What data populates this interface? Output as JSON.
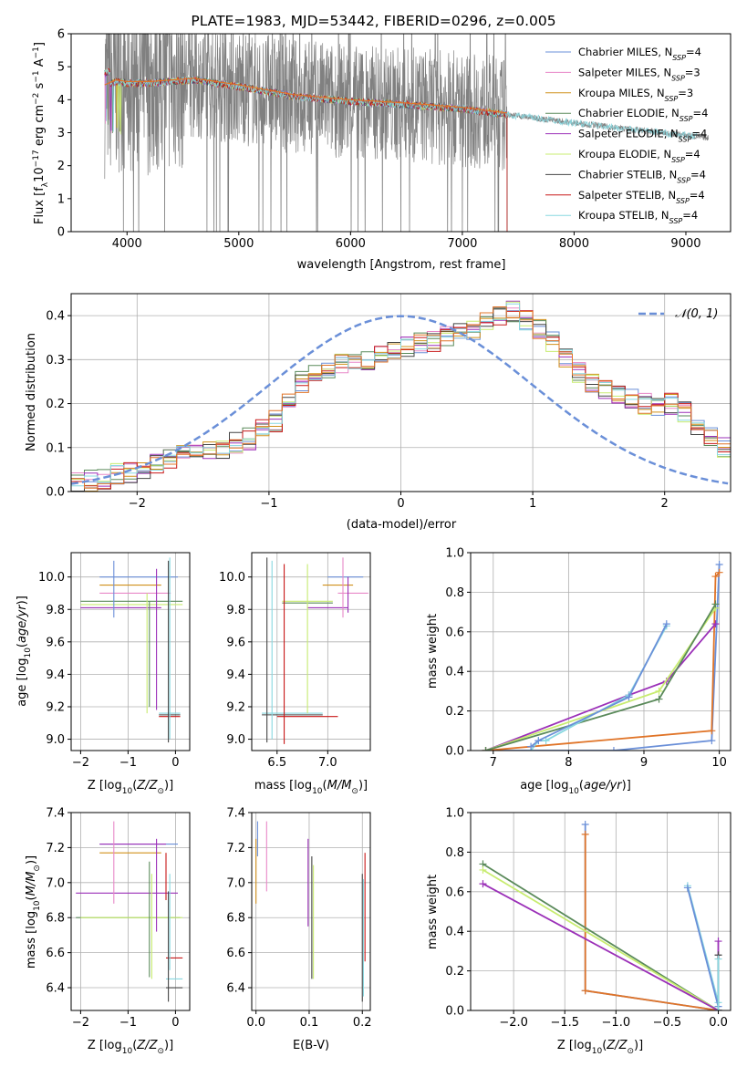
{
  "title": "PLATE=1983, MJD=53442, FIBERID=0296, z=0.005",
  "colors": {
    "Chabrier MILES": "#6a8fd8",
    "Salpeter MILES": "#e888c8",
    "Kroupa MILES": "#d0901a",
    "Chabrier ELODIE": "#5a8a5a",
    "Salpeter ELODIE": "#9b30b8",
    "Kroupa ELODIE": "#c8ec70",
    "Chabrier STELIB": "#444444",
    "Salpeter STELIB": "#c81818",
    "Kroupa STELIB": "#88d8e0",
    "data": "#808080",
    "orange": "#e07428",
    "normal": "#6a8fd8"
  },
  "legend": [
    {
      "model": "Chabrier MILES",
      "n": "=4"
    },
    {
      "model": "Salpeter MILES",
      "n": "=3"
    },
    {
      "model": "Kroupa MILES",
      "n": "=3"
    },
    {
      "model": "Chabrier ELODIE",
      "n": "=4"
    },
    {
      "model": "Salpeter ELODIE",
      "n": "=4"
    },
    {
      "model": "Kroupa ELODIE",
      "n": "=4"
    },
    {
      "model": "Chabrier STELIB",
      "n": "=4"
    },
    {
      "model": "Salpeter STELIB",
      "n": "=4"
    },
    {
      "model": "Kroupa STELIB",
      "n": "=4"
    }
  ],
  "labels": {
    "spec_x": "wavelength [Angstrom, rest frame]",
    "spec_y_prefix": "Flux [f",
    "spec_y_suffix": " erg cm",
    "hist_x": "(data-model)/error",
    "hist_y": "Normed distribution",
    "hist_legend": "𝒩(0, 1)",
    "age_y": "age  [log",
    "z_x": "Z [log",
    "mass_x": "mass [log",
    "mw_y": "mass weight",
    "age_x": "age  [log",
    "mass_y": "mass [log",
    "ebv_x": "E(B-V)"
  },
  "chart_data": [
    {
      "type": "line",
      "name": "spectrum",
      "xlim": [
        3500,
        9400
      ],
      "ylim": [
        0,
        6
      ],
      "xticks": [
        4000,
        5000,
        6000,
        7000,
        8000,
        9000
      ],
      "yticks": [
        0,
        1,
        2,
        3,
        4,
        5,
        6
      ],
      "data_range": [
        3800,
        9200
      ],
      "model_range": [
        3800,
        7400
      ],
      "continuum": [
        [
          3800,
          4.4
        ],
        [
          3900,
          4.55
        ],
        [
          4000,
          4.5
        ],
        [
          4200,
          4.5
        ],
        [
          4400,
          4.55
        ],
        [
          4600,
          4.6
        ],
        [
          5000,
          4.4
        ],
        [
          5500,
          4.1
        ],
        [
          6000,
          3.95
        ],
        [
          6500,
          3.85
        ],
        [
          7000,
          3.72
        ],
        [
          7400,
          3.55
        ],
        [
          8000,
          3.3
        ],
        [
          8500,
          3.1
        ],
        [
          9200,
          2.85
        ]
      ]
    },
    {
      "type": "line",
      "name": "residual histogram",
      "xlim": [
        -2.5,
        2.5
      ],
      "ylim": [
        0,
        0.45
      ],
      "xticks": [
        -2,
        -1,
        0,
        1,
        2
      ],
      "yticks": [
        0.0,
        0.1,
        0.2,
        0.3,
        0.4
      ],
      "bin_edges_start": -2.5,
      "bin_width": 0.1,
      "base_counts": [
        0.02,
        0.025,
        0.03,
        0.04,
        0.045,
        0.05,
        0.06,
        0.07,
        0.08,
        0.09,
        0.1,
        0.1,
        0.11,
        0.12,
        0.14,
        0.16,
        0.2,
        0.25,
        0.27,
        0.28,
        0.29,
        0.3,
        0.3,
        0.31,
        0.32,
        0.33,
        0.34,
        0.34,
        0.35,
        0.36,
        0.37,
        0.39,
        0.4,
        0.41,
        0.39,
        0.37,
        0.34,
        0.3,
        0.27,
        0.25,
        0.23,
        0.22,
        0.21,
        0.2,
        0.19,
        0.2,
        0.18,
        0.15,
        0.12,
        0.1,
        0.09,
        0.08,
        0.07,
        0.06,
        0.05,
        0.04,
        0.035,
        0.03,
        0.025,
        0.02
      ]
    },
    {
      "type": "scatter",
      "name": "age vs Z",
      "xlim": [
        -2.2,
        0.3
      ],
      "ylim": [
        8.93,
        10.15
      ],
      "xticks": [
        -2,
        -1,
        0
      ],
      "yticks": [
        9.0,
        9.2,
        9.4,
        9.6,
        9.8,
        10.0
      ],
      "hbars": [
        [
          "Chabrier MILES",
          10.0,
          -1.6,
          0.05
        ],
        [
          "Kroupa MILES",
          9.95,
          -1.6,
          -0.3
        ],
        [
          "Salpeter MILES",
          9.9,
          -1.6,
          -0.1
        ],
        [
          "Chabrier ELODIE",
          9.85,
          -2.0,
          0.15
        ],
        [
          "Kroupa ELODIE",
          9.83,
          -2.0,
          0.15
        ],
        [
          "Salpeter ELODIE",
          9.81,
          -2.0,
          -0.3
        ],
        [
          "Chabrier STELIB",
          9.15,
          -0.35,
          0.1
        ],
        [
          "Kroupa STELIB",
          9.16,
          -0.35,
          0.1
        ],
        [
          "Salpeter STELIB",
          9.14,
          -0.35,
          0.1
        ]
      ],
      "vbars": [
        [
          "Chabrier MILES",
          -1.3,
          9.75,
          10.1
        ],
        [
          "Salpeter ELODIE",
          -0.4,
          9.18,
          10.05
        ],
        [
          "Kroupa ELODIE",
          -0.6,
          9.16,
          9.9
        ],
        [
          "Chabrier ELODIE",
          -0.55,
          9.2,
          9.85
        ],
        [
          "Kroupa STELIB",
          -0.12,
          9.0,
          10.12
        ],
        [
          "Chabrier STELIB",
          -0.15,
          8.98,
          10.1
        ]
      ]
    },
    {
      "type": "scatter",
      "name": "age vs mass",
      "xlim": [
        6.25,
        7.42
      ],
      "ylim": [
        8.93,
        10.15
      ],
      "xticks": [
        6.5,
        7.0
      ],
      "yticks": [
        9.0,
        9.2,
        9.4,
        9.6,
        9.8,
        10.0
      ],
      "hbars": [
        [
          "Chabrier MILES",
          10.0,
          7.0,
          7.35
        ],
        [
          "Kroupa MILES",
          9.95,
          6.95,
          7.25
        ],
        [
          "Salpeter MILES",
          9.9,
          7.1,
          7.4
        ],
        [
          "Kroupa ELODIE",
          9.85,
          6.55,
          7.05
        ],
        [
          "Chabrier ELODIE",
          9.84,
          6.55,
          7.05
        ],
        [
          "Salpeter ELODIE",
          9.81,
          6.8,
          7.2
        ],
        [
          "Kroupa STELIB",
          9.16,
          6.35,
          6.95
        ],
        [
          "Chabrier STELIB",
          9.15,
          6.35,
          6.95
        ],
        [
          "Salpeter STELIB",
          9.14,
          6.5,
          7.1
        ]
      ],
      "vbars": [
        [
          "Chabrier STELIB",
          6.4,
          8.98,
          10.12
        ],
        [
          "Kroupa STELIB",
          6.45,
          9.0,
          10.1
        ],
        [
          "Salpeter STELIB",
          6.57,
          8.97,
          10.08
        ],
        [
          "Kroupa ELODIE",
          6.8,
          9.16,
          10.08
        ],
        [
          "Salpeter MILES",
          7.15,
          9.75,
          10.12
        ],
        [
          "Salpeter ELODIE",
          7.2,
          9.78,
          10.0
        ]
      ]
    },
    {
      "type": "line",
      "name": "mass weight vs age",
      "xlim": [
        6.7,
        10.15
      ],
      "ylim": [
        0,
        1
      ],
      "xticks": [
        7,
        8,
        9,
        10
      ],
      "yticks": [
        0.0,
        0.2,
        0.4,
        0.6,
        0.8,
        1.0
      ],
      "series": [
        {
          "color": "Chabrier MILES",
          "points": [
            [
              6.9,
              0
            ],
            [
              8.6,
              0
            ],
            [
              9.9,
              0.05
            ],
            [
              10.0,
              0.94
            ]
          ]
        },
        {
          "color": "orange",
          "points": [
            [
              6.9,
              0
            ],
            [
              9.9,
              0.1
            ],
            [
              9.95,
              0.88
            ],
            [
              10.0,
              0.9
            ]
          ]
        },
        {
          "color": "Salpeter ELODIE",
          "points": [
            [
              6.9,
              0
            ],
            [
              8.8,
              0.28
            ],
            [
              9.3,
              0.35
            ],
            [
              9.95,
              0.64
            ]
          ]
        },
        {
          "color": "Kroupa ELODIE",
          "points": [
            [
              6.9,
              0
            ],
            [
              9.2,
              0.3
            ],
            [
              9.95,
              0.72
            ]
          ]
        },
        {
          "color": "Chabrier ELODIE",
          "points": [
            [
              6.9,
              0
            ],
            [
              9.2,
              0.26
            ],
            [
              9.95,
              0.74
            ]
          ]
        },
        {
          "color": "Kroupa STELIB",
          "points": [
            [
              7.5,
              0
            ],
            [
              7.6,
              0.05
            ],
            [
              7.7,
              0.05
            ],
            [
              8.8,
              0.28
            ],
            [
              9.3,
              0.63
            ]
          ]
        },
        {
          "color": "Chabrier MILES",
          "points": [
            [
              7.5,
              0.02
            ],
            [
              7.6,
              0.05
            ],
            [
              8.8,
              0.27
            ],
            [
              9.3,
              0.64
            ]
          ]
        }
      ]
    },
    {
      "type": "scatter",
      "name": "mass vs Z",
      "xlim": [
        -2.2,
        0.3
      ],
      "ylim": [
        6.27,
        7.4
      ],
      "xticks": [
        -2,
        -1,
        0
      ],
      "yticks": [
        6.4,
        6.6,
        6.8,
        7.0,
        7.2,
        7.4
      ],
      "hbars": [
        [
          "Chabrier MILES",
          7.22,
          -1.6,
          0.05
        ],
        [
          "Salpeter ELODIE",
          7.22,
          -1.6,
          -0.2
        ],
        [
          "Kroupa MILES",
          7.17,
          -1.6,
          -0.3
        ],
        [
          "Salpeter ELODIE",
          6.94,
          -2.1,
          0.05
        ],
        [
          "Chabrier ELODIE",
          6.8,
          -2.1,
          0.1
        ],
        [
          "Kroupa ELODIE",
          6.8,
          -2.0,
          0.15
        ],
        [
          "Salpeter STELIB",
          6.57,
          -0.2,
          0.15
        ],
        [
          "Kroupa STELIB",
          6.45,
          -0.2,
          0.15
        ],
        [
          "Chabrier STELIB",
          6.4,
          -0.2,
          0.15
        ]
      ],
      "vbars": [
        [
          "Salpeter MILES",
          -1.3,
          6.88,
          7.35
        ],
        [
          "Chabrier ELODIE",
          -0.55,
          6.46,
          7.12
        ],
        [
          "Kroupa ELODIE",
          -0.5,
          6.45,
          7.05
        ],
        [
          "Salpeter ELODIE",
          -0.4,
          6.72,
          7.25
        ],
        [
          "Salpeter STELIB",
          -0.2,
          6.9,
          7.17
        ],
        [
          "Kroupa STELIB",
          -0.12,
          6.5,
          7.05
        ],
        [
          "Chabrier STELIB",
          -0.15,
          6.32,
          6.95
        ]
      ]
    },
    {
      "type": "scatter",
      "name": "mass vs E(B-V)",
      "xlim": [
        -0.008,
        0.215
      ],
      "ylim": [
        6.27,
        7.4
      ],
      "xticks": [
        0.0,
        0.1,
        0.2
      ],
      "yticks": [
        6.4,
        6.6,
        6.8,
        7.0,
        7.2,
        7.4
      ],
      "vbars": [
        [
          "Kroupa MILES",
          0.0,
          6.88,
          7.25
        ],
        [
          "Chabrier MILES",
          0.003,
          7.15,
          7.35
        ],
        [
          "Salpeter MILES",
          0.02,
          6.95,
          7.35
        ],
        [
          "Salpeter ELODIE",
          0.098,
          6.75,
          7.25
        ],
        [
          "Chabrier STELIB",
          0.105,
          6.45,
          7.15
        ],
        [
          "Kroupa ELODIE",
          0.108,
          6.45,
          7.1
        ],
        [
          "Chabrier STELIB",
          0.2,
          6.32,
          7.05
        ],
        [
          "Kroupa STELIB",
          0.202,
          6.35,
          7.02
        ],
        [
          "Salpeter STELIB",
          0.205,
          6.55,
          7.17
        ]
      ]
    },
    {
      "type": "line",
      "name": "mass weight vs Z",
      "xlim": [
        -2.42,
        0.12
      ],
      "ylim": [
        0,
        1
      ],
      "xticks": [
        -2.0,
        -1.5,
        -1.0,
        -0.5,
        0.0
      ],
      "yticks": [
        0.0,
        0.2,
        0.4,
        0.6,
        0.8,
        1.0
      ],
      "series": [
        {
          "color": "Chabrier MILES",
          "points": [
            [
              -1.3,
              0.94
            ],
            [
              -1.3,
              0.1
            ],
            [
              0.0,
              0.0
            ]
          ]
        },
        {
          "color": "orange",
          "points": [
            [
              -1.3,
              0.89
            ],
            [
              -1.3,
              0.1
            ],
            [
              0.0,
              0.0
            ]
          ]
        },
        {
          "color": "Chabrier ELODIE",
          "points": [
            [
              -2.3,
              0.74
            ],
            [
              0.0,
              0.0
            ]
          ]
        },
        {
          "color": "Kroupa ELODIE",
          "points": [
            [
              -2.3,
              0.71
            ],
            [
              0.0,
              0.0
            ]
          ]
        },
        {
          "color": "Salpeter ELODIE",
          "points": [
            [
              -2.3,
              0.64
            ],
            [
              0.0,
              0.0
            ]
          ]
        },
        {
          "color": "Kroupa STELIB",
          "points": [
            [
              -0.3,
              0.63
            ],
            [
              0.0,
              0.04
            ]
          ]
        },
        {
          "color": "Chabrier MILES",
          "points": [
            [
              -0.3,
              0.62
            ],
            [
              0.0,
              0.02
            ]
          ]
        },
        {
          "color": "Salpeter ELODIE",
          "points": [
            [
              0.0,
              0.35
            ],
            [
              0.0,
              0.0
            ]
          ]
        },
        {
          "color": "Chabrier STELIB",
          "points": [
            [
              0.0,
              0.28
            ],
            [
              0.0,
              0.0
            ]
          ]
        },
        {
          "color": "Kroupa STELIB",
          "points": [
            [
              0.0,
              0.26
            ],
            [
              0.0,
              0.0
            ]
          ]
        }
      ]
    }
  ]
}
